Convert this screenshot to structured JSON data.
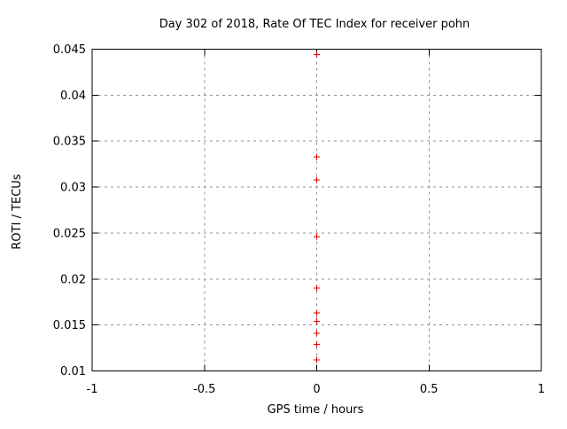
{
  "chart_data": {
    "type": "scatter",
    "title": "Day 302 of 2018, Rate Of TEC Index for receiver pohn",
    "xlabel": "GPS time / hours",
    "ylabel": "ROTI / TECUs",
    "xlim": [
      -1,
      1
    ],
    "ylim": [
      0.01,
      0.045
    ],
    "xticks": [
      -1,
      -0.5,
      0,
      0.5,
      1
    ],
    "xtick_labels": [
      "-1",
      "-0.5",
      "0",
      "0.5",
      "1"
    ],
    "yticks": [
      0.01,
      0.015,
      0.02,
      0.025,
      0.03,
      0.035,
      0.04,
      0.045
    ],
    "ytick_labels": [
      "0.01",
      "0.015",
      "0.02",
      "0.025",
      "0.03",
      "0.035",
      "0.04",
      "0.045"
    ],
    "grid": true,
    "legend_position": "none",
    "marker": "plus",
    "series": [
      {
        "name": "ROTI",
        "x": [
          0,
          0,
          0,
          0,
          0,
          0,
          0,
          0,
          0,
          0
        ],
        "y": [
          0.0444,
          0.0333,
          0.0308,
          0.0246,
          0.019,
          0.0163,
          0.0154,
          0.0141,
          0.0129,
          0.0112
        ]
      }
    ],
    "colors": {
      "marker": "#e00000",
      "grid": "#909090",
      "frame": "#000000",
      "text": "#000000",
      "background": "#ffffff"
    }
  }
}
